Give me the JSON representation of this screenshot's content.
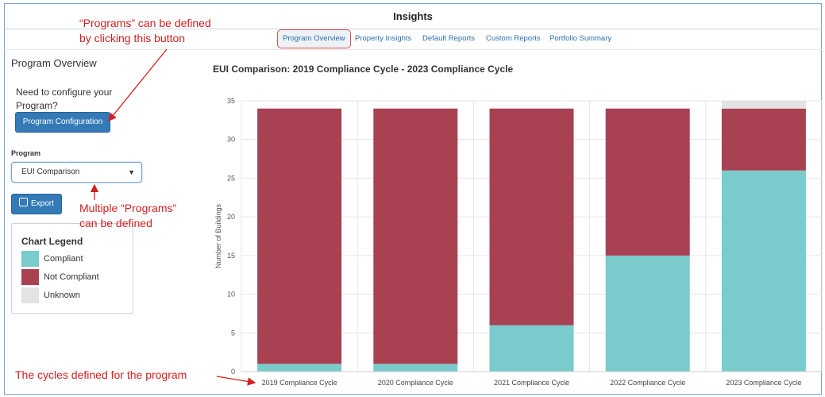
{
  "app": {
    "title": "Insights"
  },
  "tabs": [
    {
      "label": "Program Overview",
      "active": true
    },
    {
      "label": "Property Insights",
      "active": false
    },
    {
      "label": "Default Reports",
      "active": false
    },
    {
      "label": "Custom Reports",
      "active": false
    },
    {
      "label": "Portfolio Summary",
      "active": false
    }
  ],
  "sidebar": {
    "title": "Program Overview",
    "config_prompt": "Need to configure your Program?",
    "config_button": "Program Configuration",
    "program_label": "Program",
    "program_selected": "EUI Comparison",
    "export_button": "Export",
    "legend": {
      "title": "Chart Legend",
      "items": [
        {
          "label": "Compliant",
          "color": "#79cbcc"
        },
        {
          "label": "Not Compliant",
          "color": "#a84152"
        },
        {
          "label": "Unknown",
          "color": "#e3e3e3"
        }
      ]
    }
  },
  "annotations": {
    "programs_button_line1": "“Programs” can be defined",
    "programs_button_line2": "by clicking this button",
    "multiple_line1": "Multiple “Programs”",
    "multiple_line2": "can be defined",
    "cycles": "The cycles defined for the program",
    "color": "#d21f1f"
  },
  "chart_data": {
    "type": "bar",
    "stacked": true,
    "title": "EUI Comparison: 2019 Compliance Cycle - 2023 Compliance Cycle",
    "xlabel": "",
    "ylabel": "Number of Buildings",
    "ylim": [
      0,
      35
    ],
    "yticks": [
      0,
      5,
      10,
      15,
      20,
      25,
      30,
      35
    ],
    "grid": true,
    "categories": [
      "2019 Compliance Cycle",
      "2020 Compliance Cycle",
      "2021 Compliance Cycle",
      "2022 Compliance Cycle",
      "2023 Compliance Cycle"
    ],
    "series": [
      {
        "name": "Compliant",
        "color": "#79cbcc",
        "values": [
          1,
          1,
          6,
          15,
          26
        ]
      },
      {
        "name": "Not Compliant",
        "color": "#a84152",
        "values": [
          33,
          33,
          28,
          19,
          8
        ]
      },
      {
        "name": "Unknown",
        "color": "#e3e3e3",
        "values": [
          0,
          0,
          0,
          0,
          1
        ]
      }
    ]
  }
}
